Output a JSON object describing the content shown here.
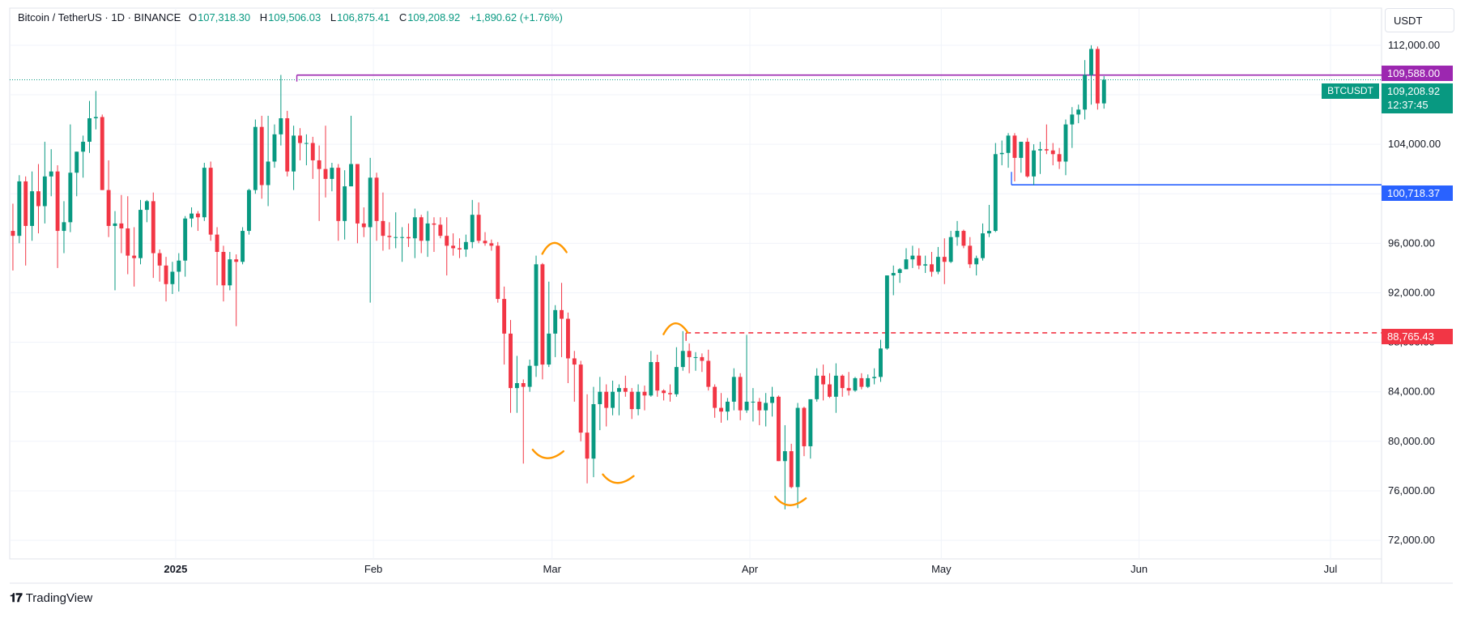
{
  "legend": {
    "symbol": "Bitcoin / TetherUS · 1D · BINANCE",
    "o_label": "O",
    "o_value": "107,318.30",
    "h_label": "H",
    "h_value": "109,506.03",
    "l_label": "L",
    "l_value": "106,875.41",
    "c_label": "C",
    "c_value": "109,208.92",
    "change": "+1,890.62 (+1.76%)"
  },
  "currency_button": "USDT",
  "branding": {
    "logo_mark": "𝟏𝟕",
    "name": "TradingView"
  },
  "tags": {
    "high_line": {
      "label": "109,588.00",
      "color": "#9c27b0"
    },
    "last_price": {
      "symbol": "BTCUSDT",
      "label": "109,208.92",
      "countdown": "12:37:45",
      "color": "#089981"
    },
    "blue_line": {
      "label": "100,718.37",
      "color": "#2962ff"
    },
    "red_line": {
      "label": "88,765.43",
      "color": "#f23645"
    }
  },
  "colors": {
    "up": "#089981",
    "down": "#f23645",
    "annotation": "#ff9800",
    "grid": "#f0f3fa"
  },
  "chart_data": {
    "type": "candlestick",
    "y_axis": {
      "ticks": [
        72000,
        76000,
        80000,
        84000,
        88000,
        92000,
        96000,
        100000,
        104000,
        108000,
        112000
      ],
      "tick_labels": [
        "72,000.00",
        "76,000.00",
        "80,000.00",
        "84,000.00",
        "88,000.00",
        "92,000.00",
        "96,000.00",
        "100,000.00",
        "104,000.00",
        "108,000.00",
        "112,000.00"
      ],
      "range": [
        70500,
        115000
      ]
    },
    "x_axis": {
      "range": [
        "2024-12-06",
        "2025-07-09"
      ],
      "ticks": [
        {
          "date": "2025-01-01",
          "label": "2025",
          "bold": true
        },
        {
          "date": "2025-02-01",
          "label": "Feb"
        },
        {
          "date": "2025-03-01",
          "label": "Mar"
        },
        {
          "date": "2025-04-01",
          "label": "Apr"
        },
        {
          "date": "2025-05-01",
          "label": "May"
        },
        {
          "date": "2025-06-01",
          "label": "Jun"
        },
        {
          "date": "2025-07-01",
          "label": "Jul"
        }
      ]
    },
    "start_date": "2024-12-06",
    "candles": [
      [
        97000,
        99200,
        93800,
        96600
      ],
      [
        96600,
        101500,
        96000,
        101000
      ],
      [
        101000,
        101400,
        94200,
        97400
      ],
      [
        97400,
        101800,
        96200,
        100200
      ],
      [
        100200,
        102400,
        96800,
        99000
      ],
      [
        99000,
        104200,
        97600,
        101400
      ],
      [
        101400,
        103600,
        99800,
        101800
      ],
      [
        101800,
        102300,
        94000,
        97000
      ],
      [
        97000,
        99400,
        95200,
        97700
      ],
      [
        97700,
        105600,
        96900,
        101700
      ],
      [
        101700,
        103400,
        99800,
        103400
      ],
      [
        103400,
        104700,
        101300,
        104200
      ],
      [
        104200,
        107500,
        103300,
        106100
      ],
      [
        106100,
        108300,
        105200,
        106200
      ],
      [
        106200,
        106400,
        100300,
        100300
      ],
      [
        100300,
        102700,
        96500,
        97400
      ],
      [
        97400,
        98600,
        92200,
        97600
      ],
      [
        97600,
        99900,
        95200,
        97200
      ],
      [
        97200,
        99800,
        93500,
        95000
      ],
      [
        95000,
        97300,
        92500,
        94800
      ],
      [
        94800,
        99500,
        94300,
        98700
      ],
      [
        98700,
        99500,
        97700,
        99400
      ],
      [
        99400,
        100100,
        93200,
        95200
      ],
      [
        95200,
        95500,
        92900,
        94200
      ],
      [
        94200,
        94900,
        91300,
        92700
      ],
      [
        92700,
        94500,
        91900,
        93700
      ],
      [
        93700,
        95200,
        92100,
        94600
      ],
      [
        94600,
        98200,
        93300,
        98000
      ],
      [
        98000,
        98900,
        97300,
        98400
      ],
      [
        98400,
        98600,
        97000,
        98100
      ],
      [
        98100,
        102500,
        97800,
        102100
      ],
      [
        102100,
        102600,
        96200,
        96700
      ],
      [
        96700,
        97300,
        92600,
        95300
      ],
      [
        95300,
        95800,
        91300,
        92600
      ],
      [
        92600,
        95300,
        92200,
        94700
      ],
      [
        94700,
        95100,
        89300,
        94500
      ],
      [
        94500,
        97300,
        94300,
        97000
      ],
      [
        97000,
        100400,
        96700,
        100300
      ],
      [
        100300,
        106000,
        100000,
        105400
      ],
      [
        105400,
        106300,
        99600,
        100700
      ],
      [
        100700,
        106300,
        99000,
        102600
      ],
      [
        102600,
        105600,
        102100,
        104800
      ],
      [
        104800,
        109600,
        103900,
        106100
      ],
      [
        106100,
        106700,
        101400,
        101800
      ],
      [
        101800,
        105500,
        100300,
        104700
      ],
      [
        104700,
        105300,
        102700,
        104100
      ],
      [
        104100,
        104800,
        102300,
        104100
      ],
      [
        104100,
        104600,
        101200,
        102700
      ],
      [
        102700,
        103900,
        97800,
        102000
      ],
      [
        102000,
        105500,
        99700,
        101200
      ],
      [
        101200,
        102500,
        100200,
        102100
      ],
      [
        102100,
        102400,
        96200,
        97800
      ],
      [
        97800,
        101900,
        96300,
        100600
      ],
      [
        100600,
        106300,
        100600,
        102400
      ],
      [
        102400,
        102400,
        96000,
        97600
      ],
      [
        97600,
        98900,
        96500,
        97300
      ],
      [
        97300,
        102900,
        91200,
        101300
      ],
      [
        101300,
        101700,
        96200,
        97800
      ],
      [
        97800,
        100100,
        95400,
        96600
      ],
      [
        96600,
        97700,
        95500,
        96500
      ],
      [
        96500,
        98500,
        95600,
        96500
      ],
      [
        96500,
        97300,
        94500,
        96500
      ],
      [
        96500,
        97600,
        95700,
        96400
      ],
      [
        96400,
        98800,
        94800,
        98100
      ],
      [
        98100,
        98300,
        95200,
        96200
      ],
      [
        96200,
        98600,
        94900,
        97600
      ],
      [
        97600,
        98100,
        95300,
        97500
      ],
      [
        97500,
        98100,
        96400,
        96600
      ],
      [
        96600,
        98100,
        93400,
        95800
      ],
      [
        95800,
        96800,
        95000,
        95600
      ],
      [
        95600,
        96400,
        94800,
        95500
      ],
      [
        95500,
        96700,
        94900,
        96100
      ],
      [
        96100,
        99500,
        95600,
        98300
      ],
      [
        98300,
        99300,
        96000,
        96200
      ],
      [
        96200,
        96900,
        95800,
        96000
      ],
      [
        96000,
        96300,
        95400,
        95800
      ],
      [
        95800,
        96100,
        91200,
        91500
      ],
      [
        91500,
        92500,
        86200,
        88700
      ],
      [
        88700,
        89800,
        82300,
        84300
      ],
      [
        84300,
        86900,
        82300,
        84700
      ],
      [
        84700,
        85000,
        78200,
        84400
      ],
      [
        84400,
        86600,
        84000,
        86100
      ],
      [
        86100,
        95000,
        85200,
        94300
      ],
      [
        94300,
        94400,
        85000,
        86200
      ],
      [
        86200,
        92900,
        86000,
        88700
      ],
      [
        88700,
        91000,
        86800,
        90600
      ],
      [
        90600,
        92800,
        86800,
        89900
      ],
      [
        89900,
        90400,
        84700,
        86700
      ],
      [
        86700,
        87300,
        83200,
        86200
      ],
      [
        86200,
        86500,
        80000,
        80700
      ],
      [
        80700,
        83800,
        76600,
        78600
      ],
      [
        78600,
        84400,
        77100,
        83000
      ],
      [
        83000,
        85200,
        80900,
        84000
      ],
      [
        84000,
        84600,
        81200,
        82700
      ],
      [
        82700,
        84900,
        82100,
        84000
      ],
      [
        84000,
        84600,
        82100,
        84300
      ],
      [
        84300,
        85300,
        83600,
        84000
      ],
      [
        84000,
        84300,
        81800,
        82600
      ],
      [
        82600,
        84600,
        82100,
        84000
      ],
      [
        84000,
        84500,
        82500,
        83700
      ],
      [
        83700,
        87300,
        83600,
        86400
      ],
      [
        86400,
        87000,
        83600,
        84100
      ],
      [
        84100,
        84200,
        83300,
        83900
      ],
      [
        83900,
        84600,
        83200,
        83800
      ],
      [
        83800,
        87600,
        83600,
        86000
      ],
      [
        86000,
        88900,
        85700,
        87300
      ],
      [
        87300,
        87900,
        85500,
        86800
      ],
      [
        86800,
        87200,
        85700,
        86800
      ],
      [
        86800,
        87100,
        85600,
        86500
      ],
      [
        86500,
        87400,
        84100,
        84400
      ],
      [
        84400,
        84600,
        81900,
        82700
      ],
      [
        82700,
        83900,
        81500,
        82400
      ],
      [
        82400,
        83500,
        81700,
        83200
      ],
      [
        83200,
        85900,
        82500,
        85200
      ],
      [
        85200,
        85500,
        81700,
        82500
      ],
      [
        82500,
        88600,
        82300,
        83200
      ],
      [
        83200,
        84300,
        81600,
        83200
      ],
      [
        83200,
        83500,
        81300,
        82500
      ],
      [
        82500,
        83900,
        81200,
        83100
      ],
      [
        83100,
        84400,
        82000,
        83600
      ],
      [
        83600,
        83700,
        78400,
        78400
      ],
      [
        78400,
        81300,
        74500,
        79200
      ],
      [
        79200,
        79800,
        76200,
        76300
      ],
      [
        76300,
        83100,
        74600,
        82700
      ],
      [
        82700,
        82800,
        78800,
        79600
      ],
      [
        79600,
        83100,
        78600,
        83400
      ],
      [
        83400,
        85900,
        83200,
        85300
      ],
      [
        85300,
        86200,
        83300,
        84600
      ],
      [
        84600,
        85500,
        83500,
        83600
      ],
      [
        83600,
        86300,
        82300,
        85300
      ],
      [
        85300,
        85400,
        83600,
        84300
      ],
      [
        84300,
        85600,
        83700,
        84100
      ],
      [
        84100,
        85200,
        84000,
        85100
      ],
      [
        85100,
        85500,
        84200,
        84400
      ],
      [
        84400,
        85400,
        84300,
        85100
      ],
      [
        85100,
        85900,
        84600,
        85200
      ],
      [
        85200,
        88200,
        84800,
        87500
      ],
      [
        87500,
        93400,
        87400,
        93400
      ],
      [
        93400,
        94200,
        91800,
        93600
      ],
      [
        93600,
        94000,
        92800,
        93900
      ],
      [
        93900,
        95600,
        93900,
        94700
      ],
      [
        94700,
        95800,
        94000,
        95000
      ],
      [
        95000,
        95600,
        93900,
        94200
      ],
      [
        94200,
        95000,
        93600,
        94300
      ],
      [
        94300,
        95300,
        93300,
        93700
      ],
      [
        93700,
        95700,
        93500,
        94900
      ],
      [
        94900,
        96400,
        92700,
        94500
      ],
      [
        94500,
        97000,
        94400,
        96500
      ],
      [
        96500,
        97800,
        95800,
        97000
      ],
      [
        97000,
        97100,
        95600,
        95800
      ],
      [
        95800,
        96500,
        94000,
        94300
      ],
      [
        94300,
        95000,
        93400,
        94800
      ],
      [
        94800,
        97600,
        94600,
        96800
      ],
      [
        96800,
        99100,
        96500,
        97000
      ],
      [
        97000,
        104100,
        96900,
        103200
      ],
      [
        103200,
        104300,
        102300,
        103300
      ],
      [
        103300,
        104900,
        102100,
        104700
      ],
      [
        104700,
        104900,
        101000,
        102900
      ],
      [
        102900,
        104000,
        101700,
        104200
      ],
      [
        104200,
        104500,
        101300,
        101400
      ],
      [
        101400,
        104000,
        100700,
        103500
      ],
      [
        103500,
        104200,
        101600,
        103600
      ],
      [
        103600,
        105600,
        103200,
        103500
      ],
      [
        103500,
        104100,
        102300,
        103200
      ],
      [
        103200,
        103700,
        102000,
        102600
      ],
      [
        102600,
        106000,
        101500,
        105600
      ],
      [
        105600,
        107000,
        103700,
        106400
      ],
      [
        106400,
        107200,
        105700,
        106800
      ],
      [
        106800,
        110800,
        106000,
        109600
      ],
      [
        109600,
        112000,
        107200,
        111700
      ],
      [
        111700,
        111900,
        106800,
        107300
      ],
      [
        107300,
        109506,
        106875,
        109209
      ]
    ],
    "horizontal_lines": [
      {
        "price": 109588,
        "from_date": "2025-01-20",
        "style": "solid",
        "color": "#9c27b0"
      },
      {
        "price": 109209,
        "from_date": "2024-12-06",
        "style": "dotted",
        "color": "#089981"
      },
      {
        "price": 100718.37,
        "from_date": "2025-05-12",
        "style": "solid",
        "color": "#2962ff"
      },
      {
        "price": 88765.43,
        "from_date": "2025-03-22",
        "style": "dashed",
        "color": "#f23645"
      }
    ],
    "annotations": [
      {
        "type": "arc",
        "date": "2025-02-28",
        "price": 78800,
        "shape": "bottom"
      },
      {
        "type": "arc",
        "date": "2025-03-11",
        "price": 76800,
        "shape": "bottom"
      },
      {
        "type": "arc",
        "date": "2025-04-07",
        "price": 75000,
        "shape": "bottom"
      },
      {
        "type": "arc",
        "date": "2025-03-01",
        "price": 95800,
        "shape": "top"
      },
      {
        "type": "arc",
        "date": "2025-03-20",
        "price": 89300,
        "shape": "top"
      }
    ]
  }
}
